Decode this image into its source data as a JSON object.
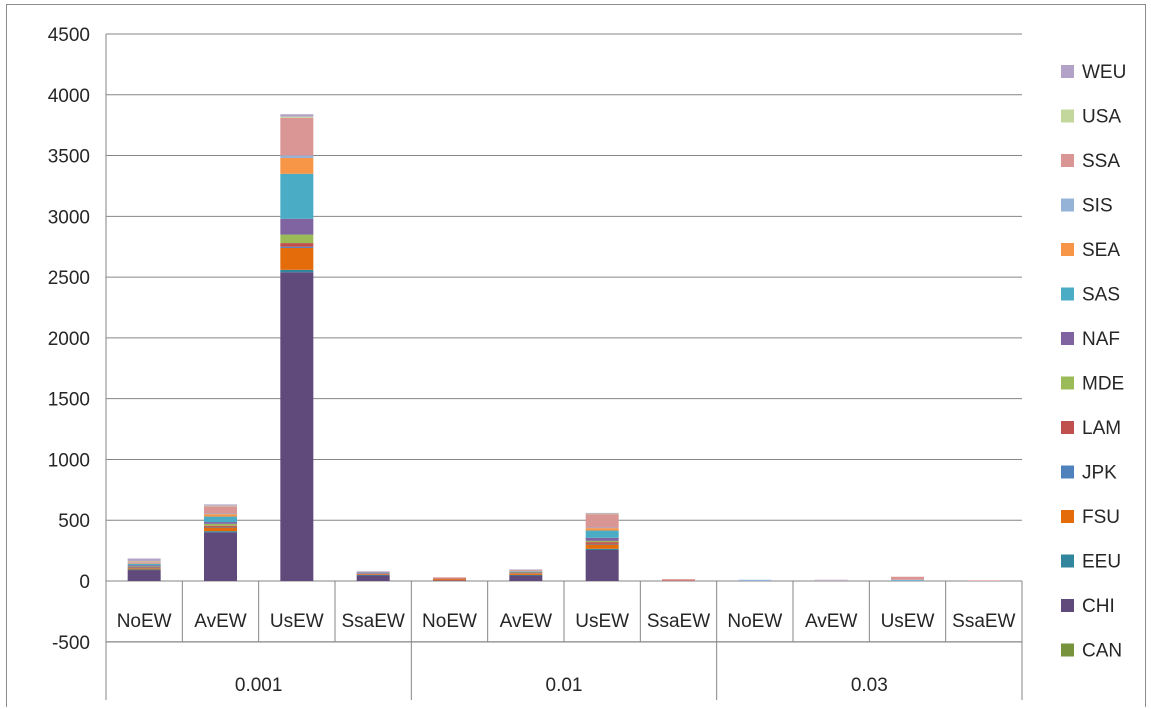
{
  "chart_data": {
    "type": "bar",
    "stacked": true,
    "ylim": [
      -500,
      4500
    ],
    "yticks": [
      -500,
      0,
      500,
      1000,
      1500,
      2000,
      2500,
      3000,
      3500,
      4000,
      4500
    ],
    "grid": true,
    "legend_position": "right",
    "groups": [
      {
        "label": "0.001",
        "categories": [
          "NoEW",
          "AvEW",
          "UsEW",
          "SsaEW"
        ]
      },
      {
        "label": "0.01",
        "categories": [
          "NoEW",
          "AvEW",
          "UsEW",
          "SsaEW"
        ]
      },
      {
        "label": "0.03",
        "categories": [
          "NoEW",
          "AvEW",
          "UsEW",
          "SsaEW"
        ]
      }
    ],
    "series": [
      {
        "name": "CAN",
        "color": "#77933c",
        "values": [
          0,
          0,
          0,
          0,
          0,
          0,
          0,
          0,
          0,
          0,
          0,
          0
        ]
      },
      {
        "name": "CHI",
        "color": "#604a7b",
        "values": [
          90,
          400,
          2540,
          45,
          5,
          45,
          255,
          0,
          0,
          0,
          0,
          0
        ]
      },
      {
        "name": "EEU",
        "color": "#31859c",
        "values": [
          5,
          10,
          20,
          5,
          0,
          5,
          10,
          0,
          0,
          0,
          0,
          0
        ]
      },
      {
        "name": "FSU",
        "color": "#e46c0a",
        "values": [
          10,
          30,
          180,
          5,
          10,
          10,
          35,
          0,
          0,
          0,
          0,
          0
        ]
      },
      {
        "name": "JPK",
        "color": "#4f81bd",
        "values": [
          5,
          5,
          10,
          0,
          0,
          0,
          5,
          0,
          0,
          0,
          0,
          0
        ]
      },
      {
        "name": "LAM",
        "color": "#c0504d",
        "values": [
          5,
          10,
          30,
          5,
          5,
          5,
          15,
          5,
          0,
          0,
          0,
          0
        ]
      },
      {
        "name": "MDE",
        "color": "#9bbb59",
        "values": [
          5,
          15,
          70,
          0,
          0,
          5,
          10,
          0,
          0,
          0,
          0,
          0
        ]
      },
      {
        "name": "NAF",
        "color": "#8064a2",
        "values": [
          10,
          15,
          130,
          5,
          0,
          5,
          25,
          0,
          0,
          0,
          0,
          0
        ]
      },
      {
        "name": "SAS",
        "color": "#4bacc6",
        "values": [
          10,
          45,
          370,
          5,
          0,
          5,
          60,
          0,
          0,
          0,
          5,
          0
        ]
      },
      {
        "name": "SEA",
        "color": "#f79646",
        "values": [
          5,
          20,
          130,
          0,
          0,
          0,
          20,
          0,
          0,
          0,
          0,
          0
        ]
      },
      {
        "name": "SIS",
        "color": "#95b3d7",
        "values": [
          5,
          5,
          20,
          0,
          0,
          0,
          5,
          0,
          10,
          5,
          5,
          0
        ]
      },
      {
        "name": "SSA",
        "color": "#d99694",
        "values": [
          10,
          60,
          310,
          5,
          10,
          10,
          110,
          10,
          0,
          5,
          25,
          5
        ]
      },
      {
        "name": "USA",
        "color": "#c3d69b",
        "values": [
          5,
          5,
          10,
          0,
          0,
          0,
          5,
          0,
          0,
          0,
          0,
          0
        ]
      },
      {
        "name": "WEU",
        "color": "#b3a2c7",
        "values": [
          20,
          10,
          20,
          5,
          0,
          5,
          5,
          0,
          0,
          0,
          0,
          0
        ]
      }
    ]
  }
}
